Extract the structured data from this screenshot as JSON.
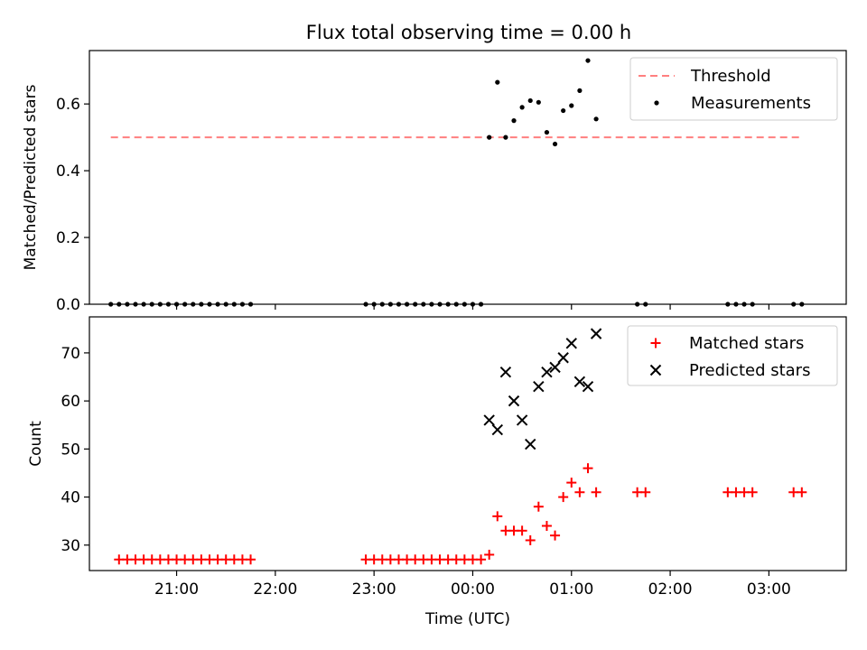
{
  "title": "Flux total observing time = 0.00 h",
  "x_axis": {
    "label": "Time (UTC)",
    "ticks": [
      {
        "label": "21:00",
        "hours": 21
      },
      {
        "label": "22:00",
        "hours": 22
      },
      {
        "label": "23:00",
        "hours": 23
      },
      {
        "label": "00:00",
        "hours": 24
      },
      {
        "label": "01:00",
        "hours": 25
      },
      {
        "label": "02:00",
        "hours": 26
      },
      {
        "label": "03:00",
        "hours": 27
      }
    ]
  },
  "chart_data": [
    {
      "type": "scatter",
      "title": "Flux total observing time = 0.00 h",
      "xlabel": "",
      "ylabel": "Matched/Predicted stars",
      "ylim": [
        0,
        0.76
      ],
      "yticks": [
        "0.0",
        "0.2",
        "0.4",
        "0.6"
      ],
      "grid": false,
      "legend": "top-right",
      "series": [
        {
          "name": "Threshold",
          "kind": "line",
          "style": "dashed",
          "color": "#ff7f7f",
          "x": [
            "20:20",
            "03:20"
          ],
          "y": [
            0.5,
            0.5
          ]
        },
        {
          "name": "Measurements",
          "kind": "dot",
          "color": "#000000",
          "x": [
            "20:20",
            "20:25",
            "20:30",
            "20:35",
            "20:40",
            "20:45",
            "20:50",
            "20:55",
            "21:00",
            "21:05",
            "21:10",
            "21:15",
            "21:20",
            "21:25",
            "21:30",
            "21:35",
            "21:40",
            "21:45",
            "22:55",
            "23:00",
            "23:05",
            "23:10",
            "23:15",
            "23:20",
            "23:25",
            "23:30",
            "23:35",
            "23:40",
            "23:45",
            "23:50",
            "23:55",
            "00:00",
            "00:05",
            "00:10",
            "00:15",
            "00:20",
            "00:25",
            "00:30",
            "00:35",
            "00:40",
            "00:45",
            "00:50",
            "00:55",
            "01:00",
            "01:05",
            "01:10",
            "01:15",
            "01:40",
            "01:45",
            "02:35",
            "02:40",
            "02:45",
            "02:50",
            "03:15",
            "03:20"
          ],
          "y": [
            0,
            0,
            0,
            0,
            0,
            0,
            0,
            0,
            0,
            0,
            0,
            0,
            0,
            0,
            0,
            0,
            0,
            0,
            0,
            0,
            0,
            0,
            0,
            0,
            0,
            0,
            0,
            0,
            0,
            0,
            0,
            0,
            0,
            0.5,
            0.665,
            0.5,
            0.55,
            0.59,
            0.61,
            0.605,
            0.515,
            0.48,
            0.58,
            0.595,
            0.64,
            0.73,
            0.555,
            0,
            0,
            0,
            0,
            0,
            0,
            0,
            0
          ]
        }
      ]
    },
    {
      "type": "scatter",
      "xlabel": "Time (UTC)",
      "ylabel": "Count",
      "ylim": [
        24.7,
        77.5
      ],
      "yticks": [
        "30",
        "40",
        "50",
        "60",
        "70"
      ],
      "grid": false,
      "legend": "top-right",
      "series": [
        {
          "name": "Matched stars",
          "marker": "plus",
          "color": "#ff0000",
          "x": [
            "20:25",
            "20:30",
            "20:35",
            "20:40",
            "20:45",
            "20:50",
            "20:55",
            "21:00",
            "21:05",
            "21:10",
            "21:15",
            "21:20",
            "21:25",
            "21:30",
            "21:35",
            "21:40",
            "21:45",
            "22:55",
            "23:00",
            "23:05",
            "23:10",
            "23:15",
            "23:20",
            "23:25",
            "23:30",
            "23:35",
            "23:40",
            "23:45",
            "23:50",
            "23:55",
            "00:00",
            "00:05",
            "00:10",
            "00:15",
            "00:20",
            "00:25",
            "00:30",
            "00:35",
            "00:40",
            "00:45",
            "00:50",
            "00:55",
            "01:00",
            "01:05",
            "01:10",
            "01:15",
            "01:40",
            "01:45",
            "02:35",
            "02:40",
            "02:45",
            "02:50",
            "03:15",
            "03:20"
          ],
          "y": [
            27,
            27,
            27,
            27,
            27,
            27,
            27,
            27,
            27,
            27,
            27,
            27,
            27,
            27,
            27,
            27,
            27,
            27,
            27,
            27,
            27,
            27,
            27,
            27,
            27,
            27,
            27,
            27,
            27,
            27,
            27,
            27,
            28,
            36,
            33,
            33,
            33,
            31,
            38,
            34,
            32,
            40,
            43,
            41,
            46,
            41,
            41,
            41,
            41,
            41,
            41,
            41,
            41,
            41
          ]
        },
        {
          "name": "Predicted stars",
          "marker": "x",
          "color": "#000000",
          "x": [
            "00:10",
            "00:15",
            "00:20",
            "00:25",
            "00:30",
            "00:35",
            "00:40",
            "00:45",
            "00:50",
            "00:55",
            "01:00",
            "01:05",
            "01:10",
            "01:15"
          ],
          "y": [
            56,
            54,
            66,
            60,
            56,
            51,
            63,
            66,
            67,
            69,
            72,
            64,
            63,
            74
          ]
        }
      ]
    }
  ]
}
